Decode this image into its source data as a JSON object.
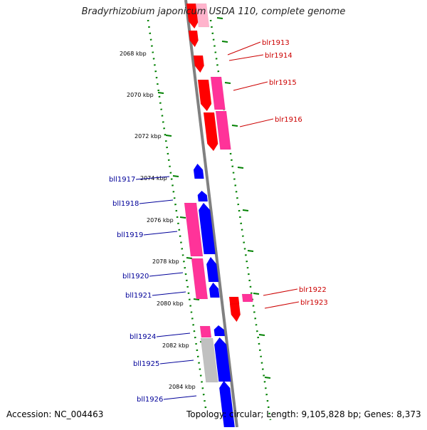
{
  "title": {
    "organism": "Bradyrhizobium japonicum",
    "rest": "USDA 110, complete genome"
  },
  "footer": {
    "accession": "Accession: NC_004463",
    "summary": "Topology: circular; Length: 9,105,828 bp; Genes: 8,373"
  },
  "colors": {
    "forward_gene": "#ff0000",
    "reverse_gene": "#0000ff",
    "pseudo_feature": "#ff3399",
    "light_pink": "#ffb3cc",
    "gray_feature": "#c0c0c0",
    "backbone": "#808080",
    "tick": "#008000",
    "forward_label": "#cc0000",
    "reverse_label": "#000099"
  },
  "scale_labels": [
    "2068 kbp",
    "2070 kbp",
    "2072 kbp",
    "2074 kbp",
    "2076 kbp",
    "2078 kbp",
    "2080 kbp",
    "2082 kbp",
    "2084 kbp"
  ],
  "forward_labels": [
    "blr1913",
    "blr1914",
    "blr1915",
    "blr1916",
    "blr1922",
    "blr1923"
  ],
  "reverse_labels": [
    "bll1917",
    "bll1918",
    "bll1919",
    "bll1920",
    "bll1921",
    "bll1924",
    "bll1925",
    "bll1926"
  ]
}
